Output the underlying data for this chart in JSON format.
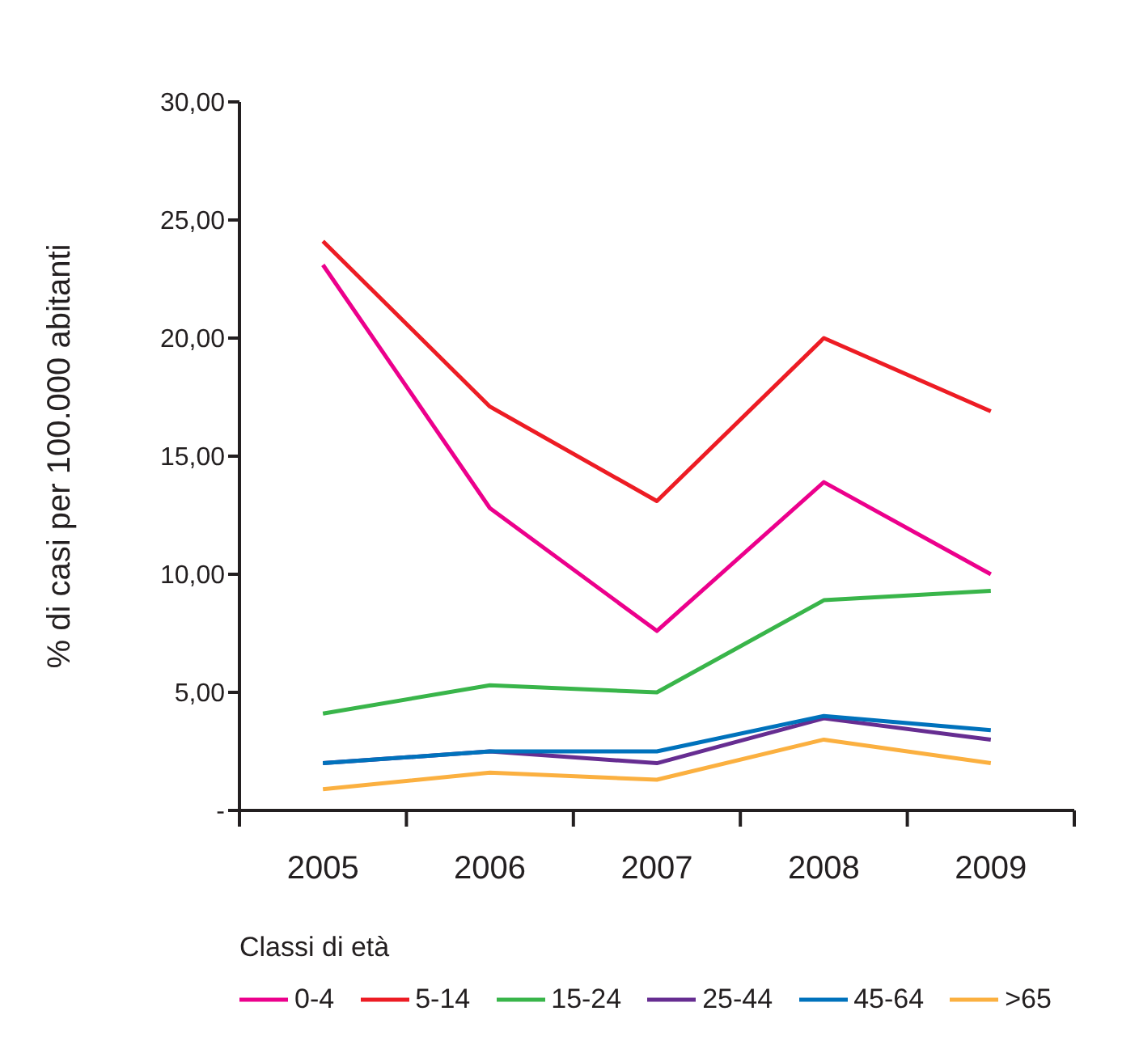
{
  "chart_data": {
    "type": "line",
    "ylabel": "% di casi per 100.000 abitanti",
    "legend_title": "Classi di età",
    "categories": [
      "2005",
      "2006",
      "2007",
      "2008",
      "2009"
    ],
    "ylim": [
      0,
      30
    ],
    "yticks": [
      {
        "value": 0,
        "label": "-"
      },
      {
        "value": 5,
        "label": "5,00"
      },
      {
        "value": 10,
        "label": "10,00"
      },
      {
        "value": 15,
        "label": "15,00"
      },
      {
        "value": 20,
        "label": "20,00"
      },
      {
        "value": 25,
        "label": "25,00"
      },
      {
        "value": 30,
        "label": "30,00"
      }
    ],
    "grid": false,
    "legend": "bottom",
    "marker": "none",
    "line_style": "solid",
    "series": [
      {
        "name": "0-4",
        "color": "#ec008c",
        "values": [
          23.1,
          12.8,
          7.6,
          13.9,
          10.0
        ]
      },
      {
        "name": "5-14",
        "color": "#ed1c24",
        "values": [
          24.1,
          17.1,
          13.1,
          20.0,
          16.9
        ]
      },
      {
        "name": "15-24",
        "color": "#39b54a",
        "values": [
          4.1,
          5.3,
          5.0,
          8.9,
          9.3
        ]
      },
      {
        "name": "25-44",
        "color": "#662d91",
        "values": [
          2.0,
          2.5,
          2.0,
          3.9,
          3.0
        ]
      },
      {
        "name": "45-64",
        "color": "#0072bc",
        "values": [
          2.0,
          2.5,
          2.5,
          4.0,
          3.4
        ]
      },
      {
        "name": ">65",
        "color": "#fbb040",
        "values": [
          0.9,
          1.6,
          1.3,
          3.0,
          2.0
        ]
      }
    ]
  }
}
